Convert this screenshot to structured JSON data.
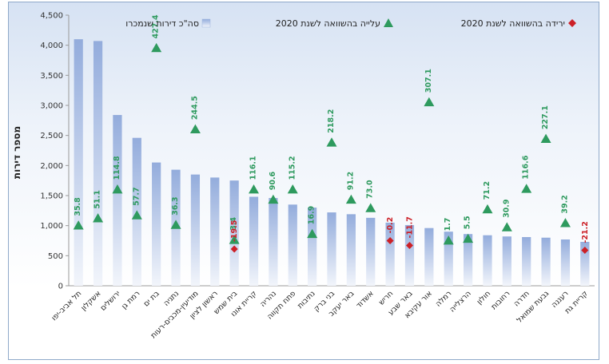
{
  "chart_data": {
    "type": "bar",
    "ylabel": "מספר דירות",
    "ylim": [
      0,
      4500
    ],
    "y_ticks": [
      "0",
      "500",
      "1,000",
      "1,500",
      "2,000",
      "2,500",
      "3,000",
      "3,500",
      "4,000",
      "4,500"
    ],
    "legend_position": "top",
    "categories": [
      "תל אביב-יפו",
      "אשקלון",
      "ירושלים",
      "רמת גן",
      "בת ים",
      "נתניה",
      "מודיעין-מכבים-רעות",
      "ראשון לציון",
      "בית שמש",
      "קריית אונו",
      "נהריה",
      "פתח תקווה",
      "נתיבות",
      "בני ברק",
      "באר יעקב",
      "אשדוד",
      "חריש",
      "באר שבע",
      "אור עקיבא",
      "רמלה",
      "הרצלייה",
      "חולון",
      "רחובות",
      "חדרה",
      "גבעת שמואל",
      "רעננה",
      "קריית גת"
    ],
    "series": [
      {
        "name": "סה\"כ דירות שנמכרו",
        "type": "bar",
        "color": "#9fb6e0",
        "values": [
          4100,
          4070,
          2840,
          2460,
          2050,
          1930,
          1850,
          1800,
          1750,
          1480,
          1460,
          1350,
          1300,
          1220,
          1190,
          1130,
          1050,
          1010,
          960,
          900,
          860,
          840,
          820,
          810,
          800,
          770,
          730
        ]
      },
      {
        "name": "עלייה בהשוואה לשנת 2020",
        "type": "marker",
        "marker": "triangle",
        "color": "#2e9a5e",
        "values": [
          1000,
          1120,
          1600,
          1170,
          3950,
          1010,
          2600,
          null,
          760,
          1600,
          1430,
          1600,
          860,
          2380,
          1430,
          1290,
          null,
          null,
          3050,
          750,
          780,
          1270,
          970,
          1610,
          2440,
          1040,
          null
        ],
        "labels": [
          "35.8",
          "51.1",
          "114.8",
          "57.7",
          "427.4",
          "36.3",
          "244.5",
          "",
          "3.4",
          "116.1",
          "90.6",
          "115.2",
          "16.9",
          "218.2",
          "91.2",
          "73.0",
          "",
          "",
          "307.1",
          "1.7",
          "5.5",
          "71.2",
          "30.9",
          "116.6",
          "227.1",
          "39.2",
          ""
        ]
      },
      {
        "name": "ירידה בהשוואה לשנת 2020",
        "type": "marker",
        "marker": "diamond",
        "color": "#cc2027",
        "values": [
          null,
          null,
          null,
          null,
          null,
          null,
          null,
          null,
          610,
          null,
          null,
          null,
          null,
          null,
          null,
          null,
          750,
          670,
          null,
          null,
          null,
          null,
          null,
          null,
          null,
          null,
          590
        ],
        "labels": [
          "",
          "",
          "",
          "",
          "",
          "",
          "",
          "",
          "-19.5",
          "",
          "",
          "",
          "",
          "",
          "",
          "",
          "-0.2",
          "-11.7",
          "",
          "",
          "",
          "",
          "",
          "",
          "",
          "",
          "-21.2"
        ]
      }
    ]
  }
}
